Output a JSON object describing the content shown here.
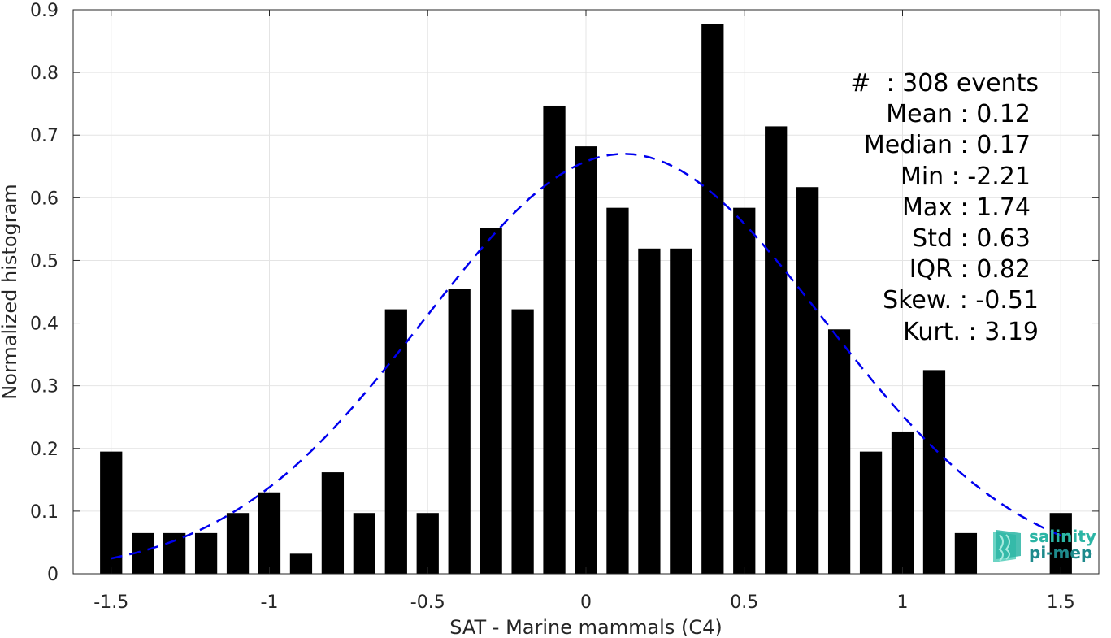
{
  "chart_data": {
    "type": "bar",
    "xlabel": "SAT - Marine mammals (C4)",
    "ylabel": "Normalized histogram",
    "xlim": [
      -1.62,
      1.62
    ],
    "ylim": [
      0,
      0.9
    ],
    "grid": true,
    "x_ticks": [
      -1.5,
      -1,
      -0.5,
      0,
      0.5,
      1,
      1.5
    ],
    "x_tick_labels": [
      "-1.5",
      "-1",
      "-0.5",
      "0",
      "0.5",
      "1",
      "1.5"
    ],
    "y_ticks": [
      0,
      0.1,
      0.2,
      0.3,
      0.4,
      0.5,
      0.6,
      0.7,
      0.8,
      0.9
    ],
    "y_tick_labels": [
      "0",
      "0.1",
      "0.2",
      "0.3",
      "0.4",
      "0.5",
      "0.6",
      "0.7",
      "0.8",
      "0.9"
    ],
    "bar_width": 0.07,
    "bar_color": "#000000",
    "bars": {
      "x": [
        -1.5,
        -1.4,
        -1.3,
        -1.2,
        -1.1,
        -1.0,
        -0.9,
        -0.8,
        -0.7,
        -0.6,
        -0.5,
        -0.4,
        -0.3,
        -0.2,
        -0.1,
        0.0,
        0.1,
        0.2,
        0.3,
        0.4,
        0.5,
        0.6,
        0.7,
        0.8,
        0.9,
        1.0,
        1.1,
        1.2,
        1.5
      ],
      "values": [
        0.195,
        0.065,
        0.065,
        0.065,
        0.097,
        0.13,
        0.032,
        0.162,
        0.097,
        0.422,
        0.097,
        0.455,
        0.552,
        0.422,
        0.747,
        0.682,
        0.584,
        0.519,
        0.519,
        0.877,
        0.584,
        0.714,
        0.617,
        0.39,
        0.195,
        0.227,
        0.325,
        0.065,
        0.097
      ]
    },
    "fit_curve": {
      "type": "normal",
      "style": "dashed",
      "color": "#0000ee",
      "mean": 0.12,
      "std": 0.63,
      "peak": 0.67,
      "x_range": [
        -1.5,
        1.5
      ]
    },
    "stats": [
      {
        "label": "#  ",
        "value": ": 308 events"
      },
      {
        "label": "Mean ",
        "value": ": 0.12"
      },
      {
        "label": "Median ",
        "value": ": 0.17"
      },
      {
        "label": "Min ",
        "value": ": -2.21"
      },
      {
        "label": "Max ",
        "value": ": 1.74"
      },
      {
        "label": "Std ",
        "value": ": 0.63"
      },
      {
        "label": "IQR ",
        "value": ": 0.82"
      },
      {
        "label": "Skew. ",
        "value": ": -0.51"
      },
      {
        "label": "Kurt. ",
        "value": ": 3.19"
      }
    ]
  },
  "logo": {
    "line1": "salinity",
    "line2": "pi-mep",
    "color": "#2bb5a5"
  }
}
